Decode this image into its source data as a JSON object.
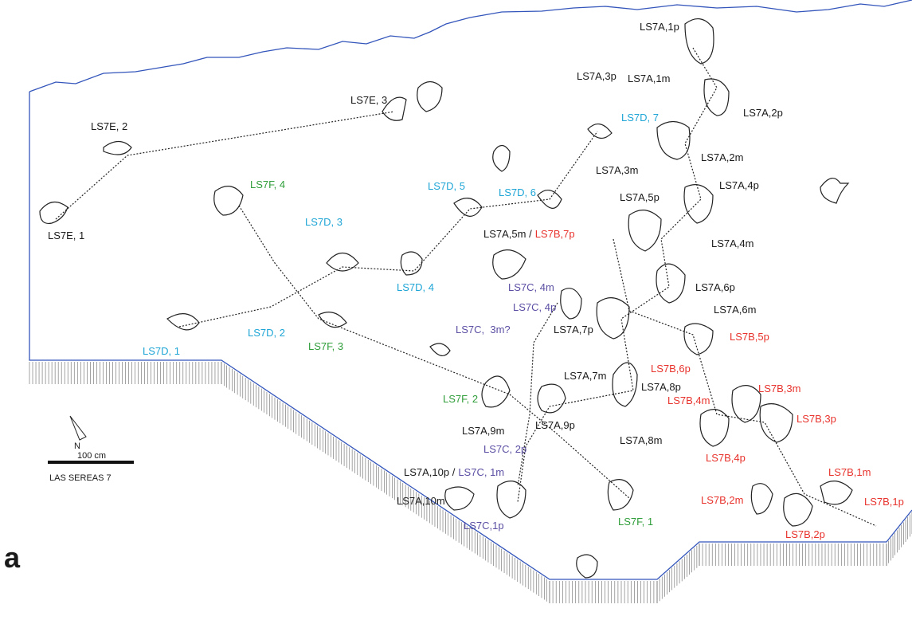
{
  "panel_label": "a",
  "scale": {
    "north": "N",
    "length": "100 cm",
    "site": "LAS SEREAS 7"
  },
  "labels": [
    "LS7A,1p",
    "LS7A,3p",
    "LS7A,1m",
    "LS7A,2p",
    "LS7A,2m",
    "LS7A,3m",
    "LS7A,4p",
    "LS7A,5p",
    "LS7A,5m /",
    "LS7B,7p",
    "LS7A,4m",
    "LS7A,6p",
    "LS7A,6m",
    "LS7A,7p",
    "LS7A,7m",
    "LS7A,8p",
    "LS7A,9m",
    "LS7A,9p",
    "LS7A,8m",
    "LS7A,10p /",
    "LS7C, 1m",
    "LS7A,10m",
    "LS7E, 3",
    "LS7E, 2",
    "LS7E, 1",
    "LS7D, 7",
    "LS7D, 5",
    "LS7D, 6",
    "LS7D, 3",
    "LS7D, 4",
    "LS7D, 2",
    "LS7D, 1",
    "LS7F, 4",
    "LS7F, 3",
    "LS7F, 2",
    "LS7F, 1",
    "LS7C, 4m",
    "LS7C, 4p",
    "LS7C,  3m?",
    "LS7C, 2p",
    "LS7C,1p",
    "LS7B,5p",
    "LS7B,6p",
    "LS7B,3m",
    "LS7B,4m",
    "LS7B,3p",
    "LS7B,4p",
    "LS7B,1m",
    "LS7B,2m",
    "LS7B,1p",
    "LS7B,2p"
  ]
}
